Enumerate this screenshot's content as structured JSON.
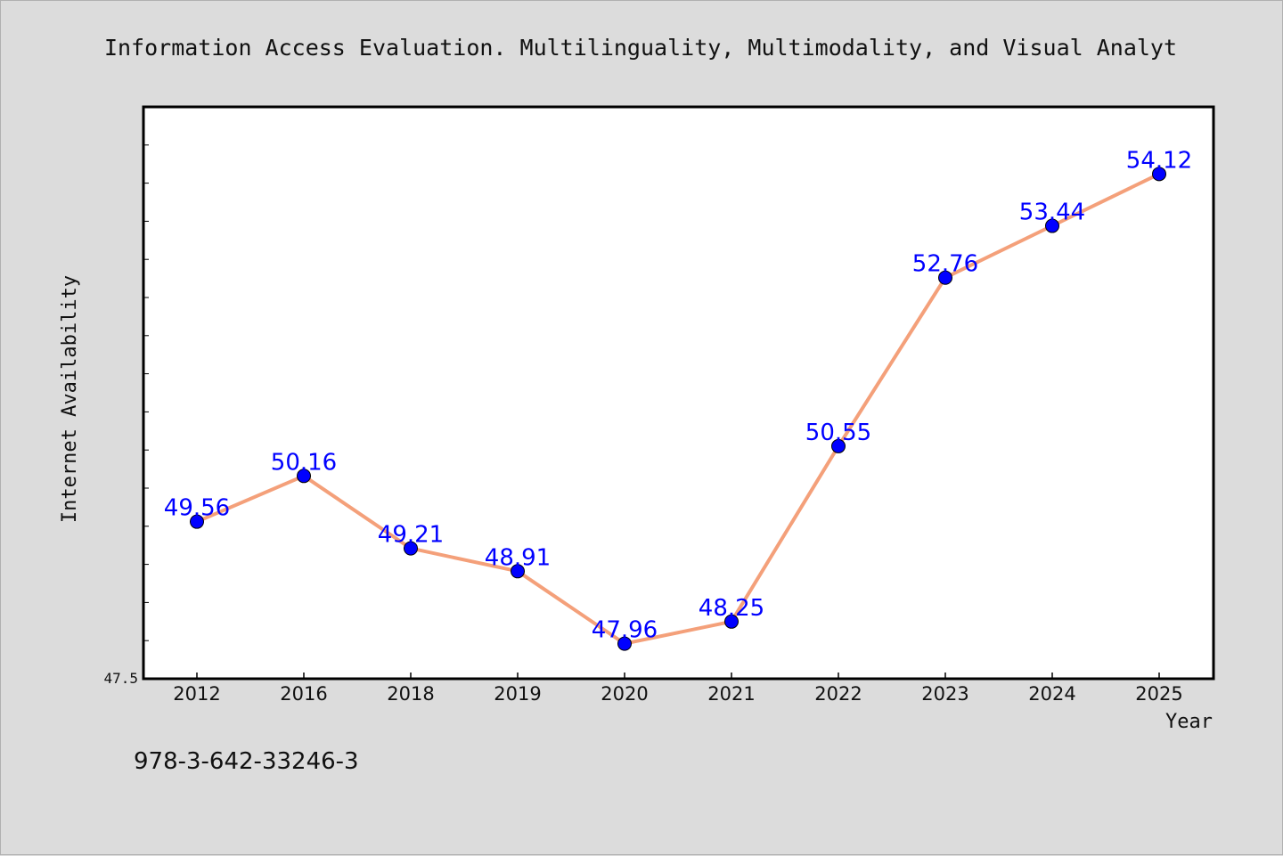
{
  "chart_data": {
    "type": "line",
    "title": "Information Access Evaluation. Multilinguality, Multimodality, and Visual Analyt",
    "xlabel": "Year",
    "ylabel": "Internet Availability",
    "categories": [
      "2012",
      "2016",
      "2018",
      "2019",
      "2020",
      "2021",
      "2022",
      "2023",
      "2024",
      "2025"
    ],
    "series": [
      {
        "values": [
          49.56,
          50.16,
          49.21,
          48.91,
          47.96,
          48.25,
          50.55,
          52.76,
          53.44,
          54.12
        ],
        "labels": [
          "49.56",
          "50.16",
          "49.21",
          "48.91",
          "47.96",
          "48.25",
          "50.55",
          "52.76",
          "53.44",
          "54.12"
        ]
      }
    ],
    "ylim": [
      47.5,
      55.0
    ],
    "yticks": [
      47.5
    ],
    "ytick_labels": [
      "47.5"
    ],
    "grid": false,
    "line_color": "#f4a07a",
    "marker_color": "#0000ff",
    "label_color": "#0000ff",
    "frame_color": "#000000",
    "plot_background": "#ffffff",
    "page_background": "#dcdcdc"
  },
  "footer": {
    "isbn": "978-3-642-33246-3"
  }
}
